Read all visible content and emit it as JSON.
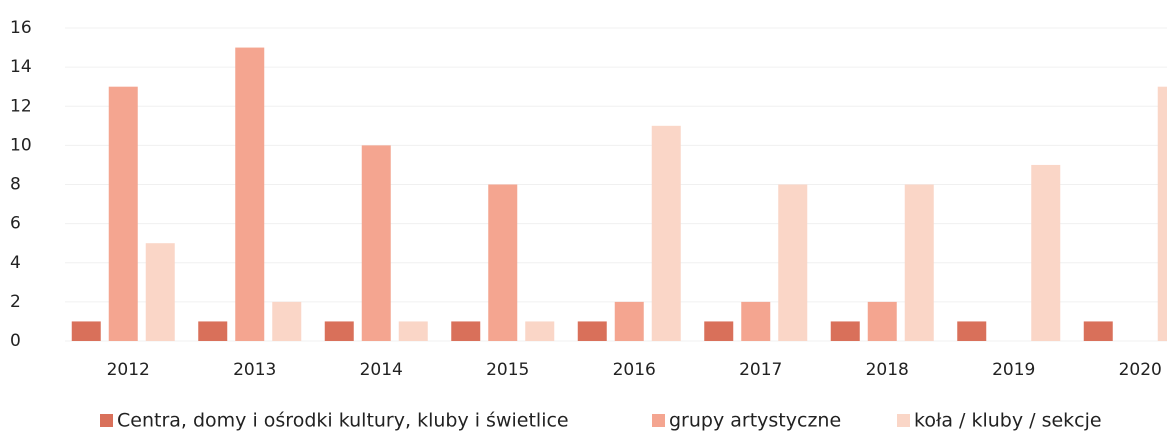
{
  "chart_data": {
    "type": "bar",
    "categories": [
      "2012",
      "2013",
      "2014",
      "2015",
      "2016",
      "2017",
      "2018",
      "2019",
      "2020"
    ],
    "series": [
      {
        "name": "Centra, domy i ośrodki kultury, kluby i świetlice",
        "color": "#d9705a",
        "values": [
          1,
          1,
          1,
          1,
          1,
          1,
          1,
          1,
          1
        ]
      },
      {
        "name": "grupy artystyczne",
        "color": "#f4a590",
        "values": [
          13,
          15,
          10,
          8,
          2,
          2,
          2,
          0,
          0
        ]
      },
      {
        "name": "koła / kluby / sekcje",
        "color": "#fad6c7",
        "values": [
          5,
          2,
          1,
          1,
          11,
          8,
          8,
          9,
          13
        ]
      }
    ],
    "ylim": [
      0,
      16
    ],
    "yticks": [
      0,
      2,
      4,
      6,
      8,
      10,
      12,
      14,
      16
    ],
    "grid": true,
    "legend": "bottom"
  }
}
